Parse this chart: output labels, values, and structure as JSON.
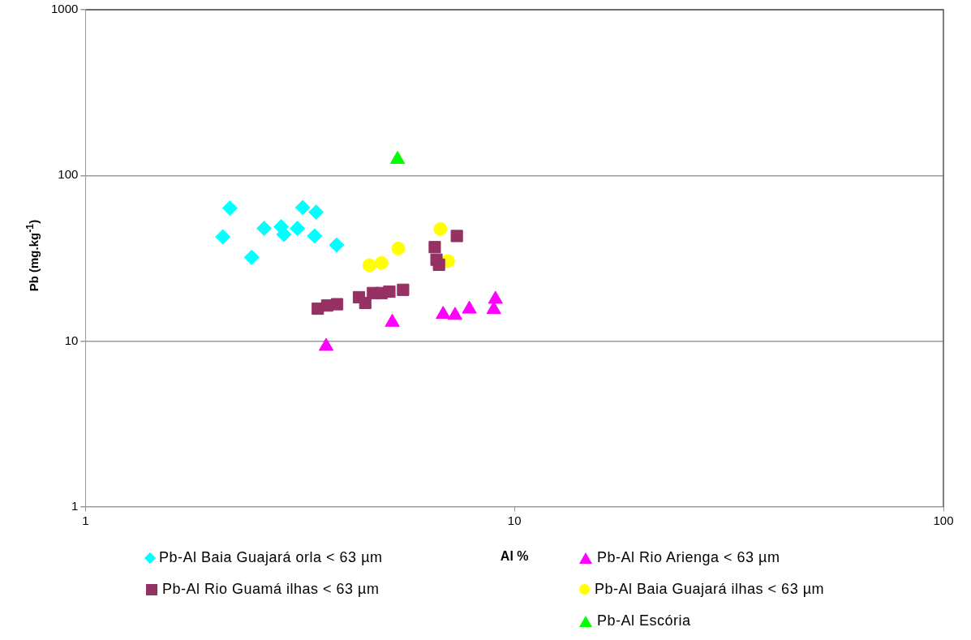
{
  "chart_data": {
    "type": "scatter",
    "xlabel": "Al %",
    "ylabel": "Pb (mg.kg$^{-1}$)",
    "log": "xy",
    "xlim": [
      1,
      100
    ],
    "xticks": [
      1,
      10,
      100
    ],
    "ylim": [
      1,
      1000
    ],
    "yticks": [
      1,
      10,
      100,
      1000
    ],
    "grid": "y",
    "legend": "bottom",
    "series": [
      {
        "name": "Pb-Al Baia Guajará orla < 63 µm",
        "color": "#00ffff",
        "marker": "diamond",
        "x": [
          2.17,
          2.09,
          2.61,
          2.44,
          2.86,
          2.9,
          3.07,
          3.12,
          3.21,
          3.45,
          3.42,
          3.85
        ],
        "values": [
          63.5,
          42.6,
          47.9,
          32,
          49,
          44,
          null,
          47.9,
          64,
          60,
          43.1,
          38
        ]
      },
      {
        "name": "Pb-Al Rio Arienga < 63 µm",
        "color": "#ff00ff",
        "marker": "triangle",
        "x": [
          3.64,
          5.19,
          6.82,
          7.27,
          7.85,
          9.03,
          8.95
        ],
        "values": [
          9.3,
          13,
          14.5,
          14.3,
          15.6,
          17.9,
          15.5
        ]
      },
      {
        "name": "Pb-Al Rio Guamá ilhas < 63 µm",
        "color": "#953163",
        "marker": "square",
        "x": [
          7.34,
          6.52,
          6.58,
          6.67,
          3.48,
          3.66,
          3.86,
          4.34,
          4.49,
          4.68,
          4.9,
          5.11,
          5.5
        ],
        "values": [
          43.1,
          36.9,
          31,
          28.9,
          15.7,
          16.4,
          16.7,
          18.4,
          17,
          19.5,
          19.5,
          19.9,
          20.4
        ]
      },
      {
        "name": "Pb-Al Baia Guajará ilhas < 63 µm",
        "color": "#ffff00",
        "marker": "circle",
        "x": [
          4.59,
          4.9,
          5.36,
          6.72,
          7.0
        ],
        "values": [
          28.7,
          29.6,
          36.2,
          47.5,
          30.4
        ]
      },
      {
        "name": "Pb-Al Escória",
        "color": "#00ff00",
        "marker": "triangle",
        "x": [
          5.34
        ],
        "values": [
          125
        ]
      }
    ]
  }
}
